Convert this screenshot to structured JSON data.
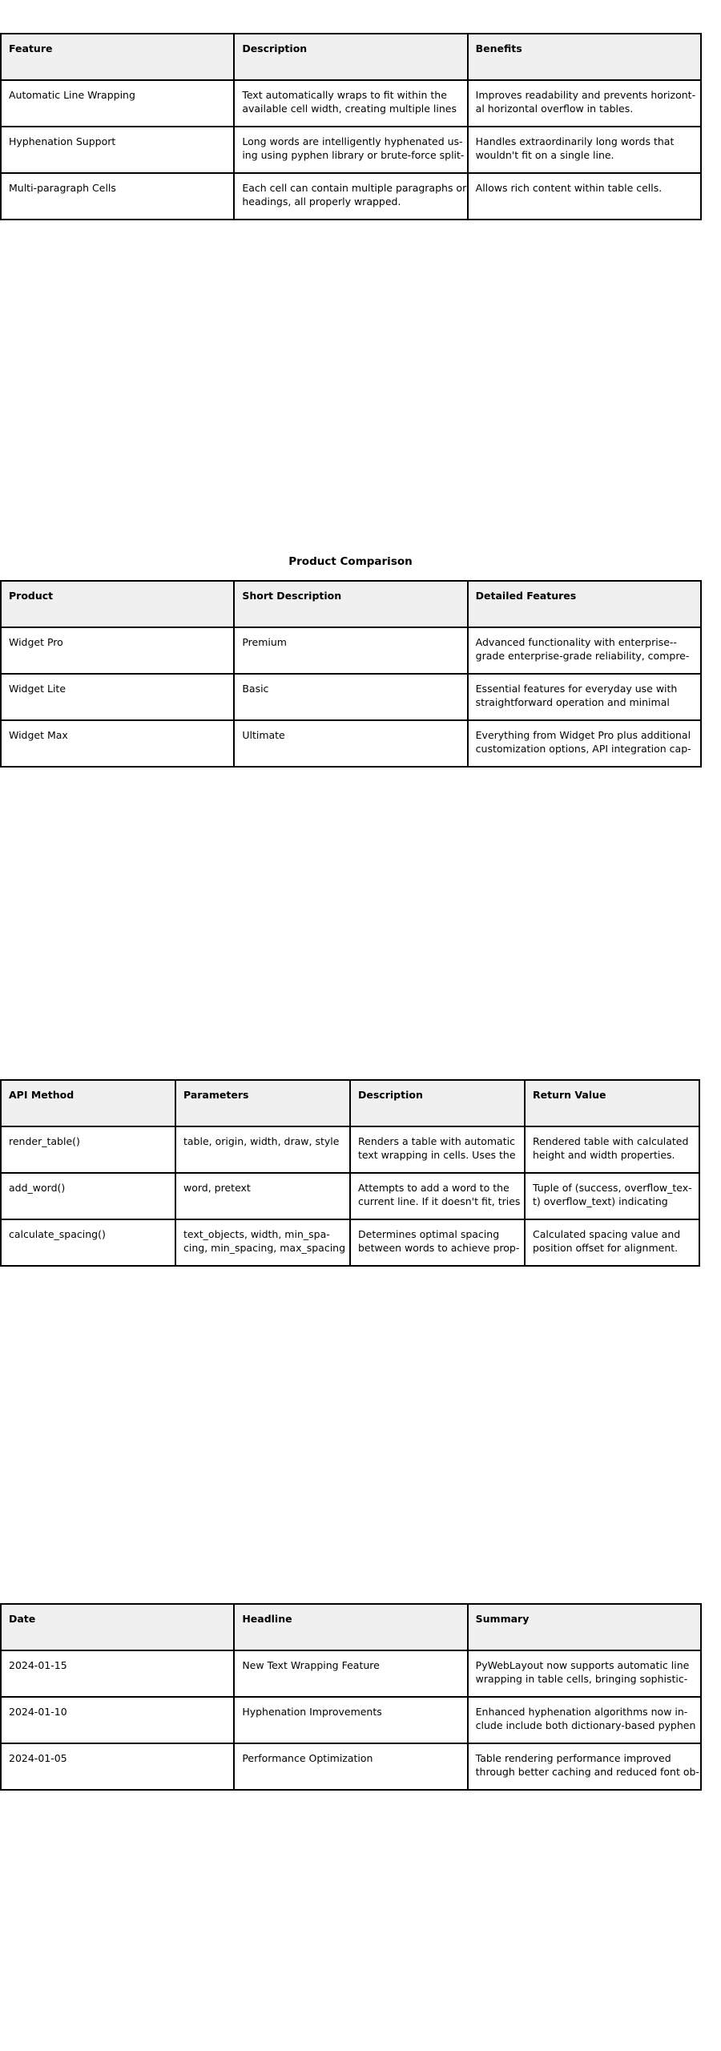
{
  "tables": [
    {
      "caption": "",
      "headers": [
        "Feature",
        "Description",
        "Benefits"
      ],
      "rows": [
        [
          [
            "Automatic Line Wrapping"
          ],
          [
            "Text automatically wraps to fit within the",
            "available cell width, creating multiple lines"
          ],
          [
            "Improves readability and prevents horizont-",
            "al horizontal overflow in tables."
          ]
        ],
        [
          [
            "Hyphenation Support"
          ],
          [
            "Long words are intelligently hyphenated us-",
            "ing using pyphen library or brute-force split-"
          ],
          [
            "Handles extraordinarily long words that",
            "wouldn't fit on a single line."
          ]
        ],
        [
          [
            "Multi-paragraph Cells"
          ],
          [
            "Each cell can contain multiple paragraphs or",
            "headings, all properly wrapped."
          ],
          [
            "Allows rich content within table cells."
          ]
        ]
      ]
    },
    {
      "caption": "Product Comparison",
      "headers": [
        "Product",
        "Short Description",
        "Detailed Features"
      ],
      "rows": [
        [
          [
            "Widget Pro"
          ],
          [
            "Premium"
          ],
          [
            "Advanced functionality with enterprise--",
            "grade enterprise-grade reliability, compre-"
          ]
        ],
        [
          [
            "Widget Lite"
          ],
          [
            "Basic"
          ],
          [
            "Essential features for everyday use with",
            "straightforward operation and minimal"
          ]
        ],
        [
          [
            "Widget Max"
          ],
          [
            "Ultimate"
          ],
          [
            "Everything from Widget Pro plus additional",
            "customization options, API integration cap-"
          ]
        ]
      ]
    },
    {
      "caption": "",
      "headers": [
        "API Method",
        "Parameters",
        "Description",
        "Return Value"
      ],
      "rows": [
        [
          [
            "render_table()"
          ],
          [
            "table, origin, width, draw, style"
          ],
          [
            "Renders a table with automatic",
            "text wrapping in cells. Uses the"
          ],
          [
            "Rendered table with calculated",
            "height and width properties."
          ]
        ],
        [
          [
            "add_word()"
          ],
          [
            "word, pretext"
          ],
          [
            "Attempts to add a word to the",
            "current line. If it doesn't fit, tries"
          ],
          [
            "Tuple of (success, overflow_tex-",
            "t) overflow_text) indicating"
          ]
        ],
        [
          [
            "calculate_spacing()"
          ],
          [
            "text_objects, width, min_spa-",
            "cing, min_spacing, max_spacing"
          ],
          [
            "Determines optimal spacing",
            "between words to achieve prop-"
          ],
          [
            "Calculated spacing value and",
            "position offset for alignment."
          ]
        ]
      ]
    },
    {
      "caption": "",
      "headers": [
        "Date",
        "Headline",
        "Summary"
      ],
      "rows": [
        [
          [
            "2024-01-15"
          ],
          [
            "New Text Wrapping Feature"
          ],
          [
            "PyWebLayout now supports automatic line",
            "wrapping in table cells, bringing sophistic-"
          ]
        ],
        [
          [
            "2024-01-10"
          ],
          [
            "Hyphenation Improvements"
          ],
          [
            "Enhanced hyphenation algorithms now in-",
            "clude include both dictionary-based pyphen"
          ]
        ],
        [
          [
            "2024-01-05"
          ],
          [
            "Performance Optimization"
          ],
          [
            "Table rendering performance improved",
            "through better caching and reduced font ob-"
          ]
        ]
      ]
    }
  ]
}
